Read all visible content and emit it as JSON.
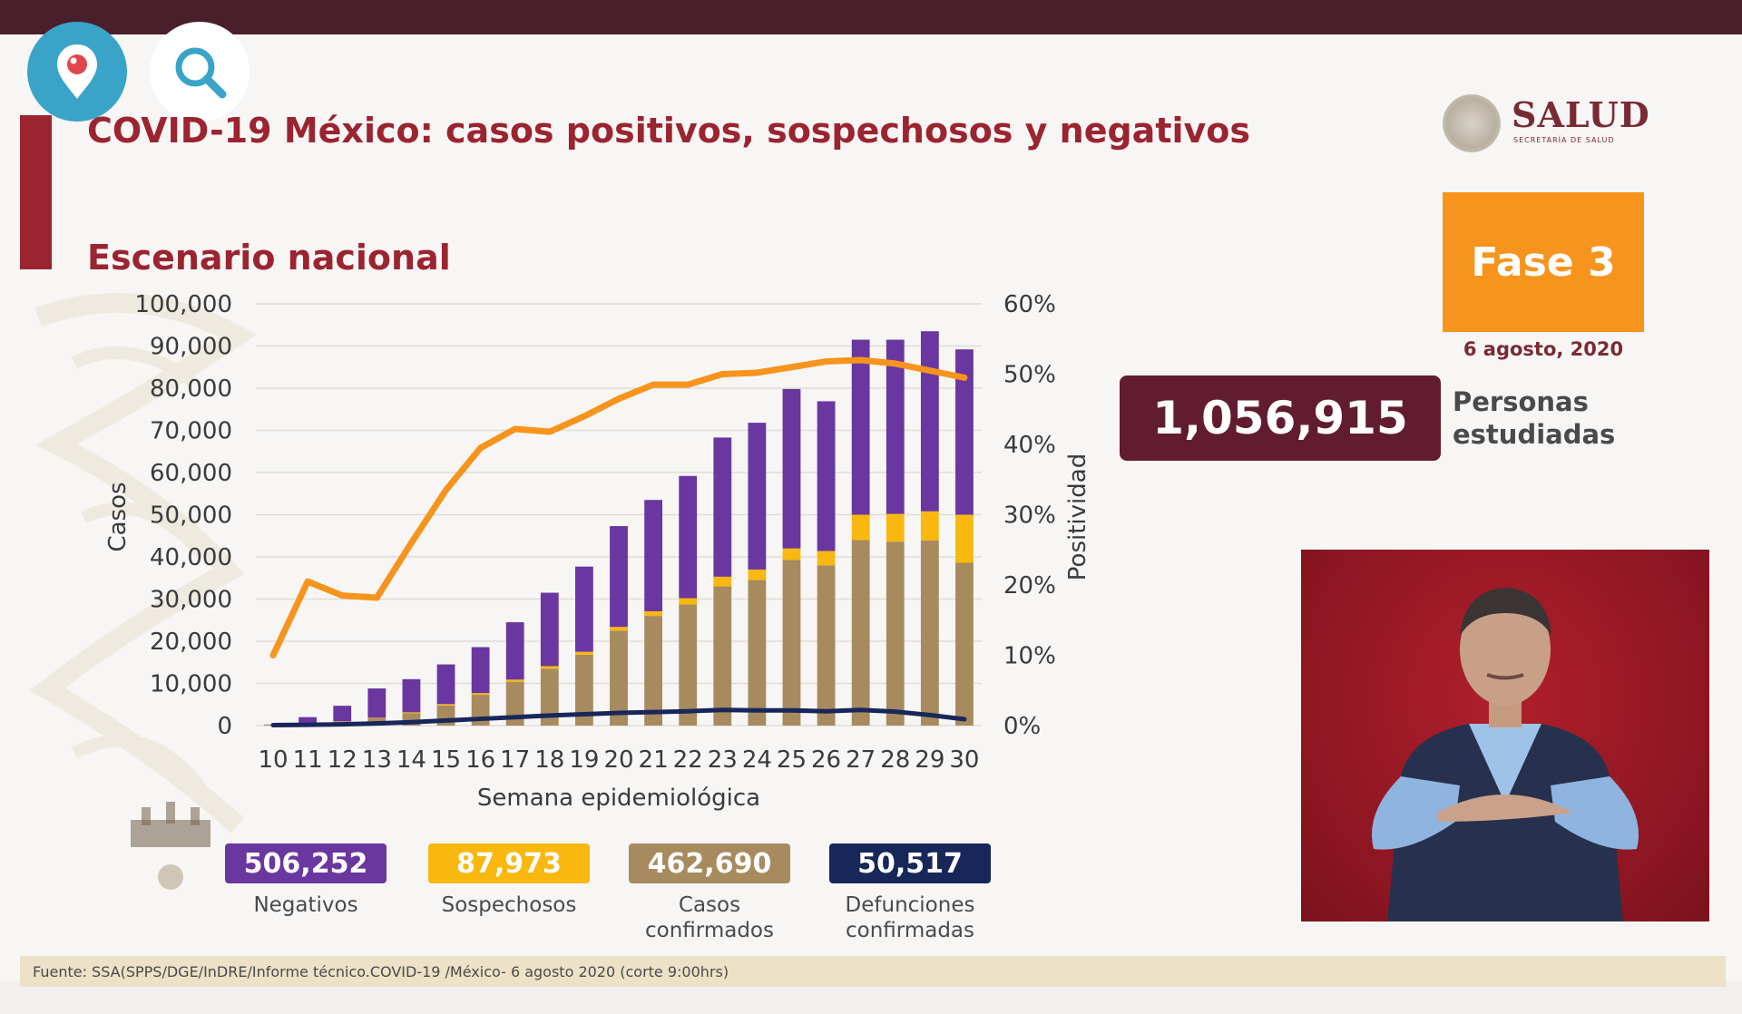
{
  "title": "COVID-19 México: casos positivos, sospechosos y negativos",
  "subtitle": "Escenario nacional",
  "logo": {
    "name": "SALUD",
    "sub": "SECRETARÍA DE SALUD"
  },
  "phase": {
    "label": "Fase 3",
    "date": "6 agosto, 2020"
  },
  "personas": {
    "value": "1,056,915",
    "label_line1": "Personas",
    "label_line2": "estudiadas"
  },
  "stats": [
    {
      "value": "506,252",
      "label": "Negativos",
      "color": "#6a36a0"
    },
    {
      "value": "87,973",
      "label": "Sospechosos",
      "color": "#f9b80f"
    },
    {
      "value": "462,690",
      "label": "Casos confirmados",
      "label_line1": "Casos",
      "label_line2": "confirmados",
      "color": "#a78a5e"
    },
    {
      "value": "50,517",
      "label": "Defunciones confirmadas",
      "label_line1": "Defunciones",
      "label_line2": "confirmadas",
      "color": "#17275a"
    }
  ],
  "source": "Fuente: SSA(SPPS/DGE/InDRE/Informe técnico.COVID-19 /México- 6 agosto 2020 (corte 9:00hrs)",
  "icons": {
    "top_left_1": "periscope-icon",
    "top_left_2": "search-icon"
  },
  "chart_data": {
    "type": "bar",
    "stacked": true,
    "categories": [
      "10",
      "11",
      "12",
      "13",
      "14",
      "15",
      "16",
      "17",
      "18",
      "19",
      "20",
      "21",
      "22",
      "23",
      "24",
      "25",
      "26",
      "27",
      "28",
      "29",
      "30"
    ],
    "xlabel": "Semana epidemiológica",
    "ylabel": "Casos",
    "y2label": "Positividad",
    "ylim": [
      0,
      100000
    ],
    "y2lim": [
      0,
      60
    ],
    "yticks": [
      "0",
      "10,000",
      "20,000",
      "30,000",
      "40,000",
      "50,000",
      "60,000",
      "70,000",
      "80,000",
      "90,000",
      "100,000"
    ],
    "y2ticks": [
      "0%",
      "10%",
      "20%",
      "30%",
      "40%",
      "50%",
      "60%"
    ],
    "grid": true,
    "series": [
      {
        "name": "Casos confirmados",
        "color": "#a78a5e",
        "values": [
          150,
          400,
          900,
          1700,
          2900,
          4800,
          7300,
          10400,
          13500,
          16800,
          22500,
          26000,
          28700,
          33000,
          34500,
          39300,
          38000,
          44000,
          43600,
          43900,
          38600
        ]
      },
      {
        "name": "Sospechosos",
        "color": "#f9b80f",
        "values": [
          20,
          50,
          100,
          150,
          250,
          300,
          400,
          500,
          600,
          700,
          900,
          1100,
          1500,
          2300,
          2500,
          2700,
          3400,
          6000,
          6600,
          6900,
          11400
        ]
      },
      {
        "name": "Negativos",
        "color": "#6a36a0",
        "values": [
          80,
          1550,
          3700,
          6950,
          7850,
          9400,
          10900,
          13600,
          17400,
          20200,
          23900,
          26400,
          29000,
          33000,
          34800,
          37800,
          35500,
          41500,
          41300,
          42700,
          39200
        ]
      }
    ],
    "lines": [
      {
        "name": "Positividad",
        "color": "#f7941d",
        "axis": "right",
        "values": [
          10,
          20.5,
          18.5,
          18.2,
          26,
          33.5,
          39.5,
          42.2,
          41.8,
          44,
          46.5,
          48.5,
          48.5,
          50,
          50.2,
          51,
          51.8,
          52,
          51.5,
          50.5,
          49.5
        ]
      },
      {
        "name": "Defunciones",
        "color": "#17275a",
        "axis": "left",
        "values": [
          100,
          200,
          300,
          500,
          800,
          1200,
          1600,
          2000,
          2400,
          2700,
          3000,
          3200,
          3400,
          3700,
          3600,
          3600,
          3400,
          3700,
          3300,
          2500,
          1500
        ]
      }
    ]
  }
}
